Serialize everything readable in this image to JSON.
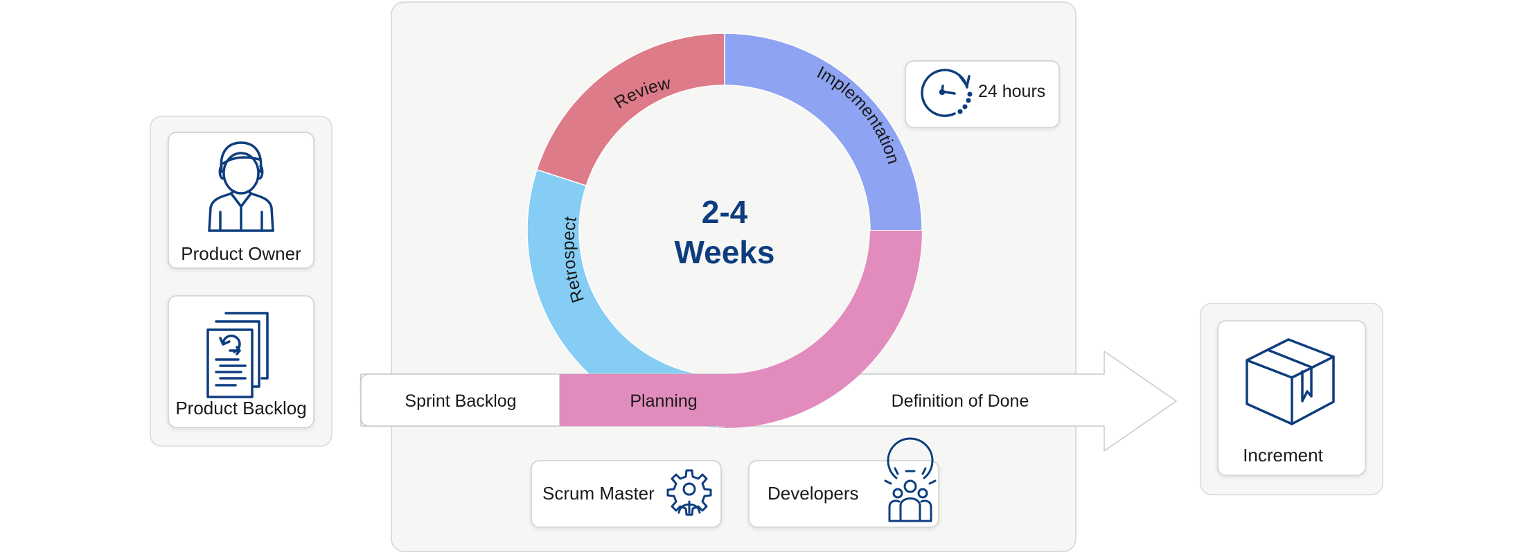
{
  "colors": {
    "navy": "#0d3d7e",
    "review": "#dd7b88",
    "implementation": "#8ea3f2",
    "retrospect": "#85cdf4",
    "planning": "#e18cbd",
    "panel": "#f6f6f5",
    "border": "#d4d4d2"
  },
  "left_panel": {
    "product_owner": {
      "label": "Product Owner",
      "icon": "user-icon"
    },
    "product_backlog": {
      "label": "Product Backlog",
      "icon": "documents-icon"
    }
  },
  "cycle": {
    "duration_line1": "2-4",
    "duration_line2": "Weeks",
    "phases": [
      {
        "key": "review",
        "label": "Review"
      },
      {
        "key": "implementation",
        "label": "Implementation"
      },
      {
        "key": "retrospect",
        "label": "Retrospect"
      },
      {
        "key": "planning",
        "label": "Planning"
      }
    ]
  },
  "daily": {
    "label": "24 hours",
    "icon": "timer-icon"
  },
  "arrow": {
    "sprint_backlog": "Sprint Backlog",
    "planning": "Planning",
    "definition_of_done": "Definition of Done"
  },
  "roles": {
    "scrum_master": {
      "label": "Scrum Master",
      "icon": "gear-person-icon"
    },
    "developers": {
      "label": "Developers",
      "icon": "gear-team-icon"
    }
  },
  "output": {
    "label": "Increment",
    "icon": "box-icon"
  }
}
